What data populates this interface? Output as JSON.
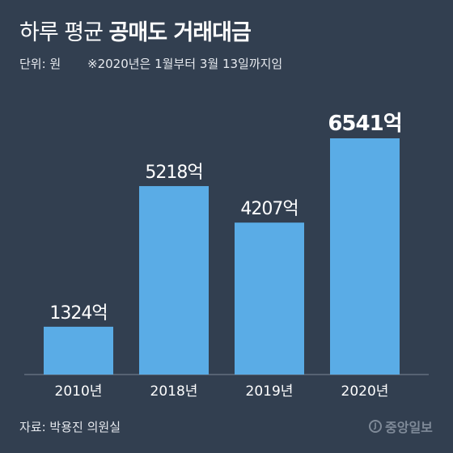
{
  "header": {
    "title_light": "하루 평균",
    "title_bold": "공매도 거래대금",
    "unit": "단위: 원",
    "note": "※2020년은 1월부터 3월 13일까지임"
  },
  "footer": {
    "source": "자료: 박용진 의원실",
    "logo_text": "중앙일보"
  },
  "colors": {
    "background": "#323f50",
    "bar": "#5aace6",
    "text": "#ffffff"
  },
  "chart_data": {
    "type": "bar",
    "title": "하루 평균 공매도 거래대금",
    "categories": [
      "2010년",
      "2018년",
      "2019년",
      "2020년"
    ],
    "values": [
      1324,
      5218,
      4207,
      6541
    ],
    "value_labels": [
      "1324억",
      "5218억",
      "4207억",
      "6541억"
    ],
    "highlight_index": 3,
    "ylabel": "",
    "xlabel": "",
    "ylim": [
      0,
      6541
    ],
    "grid": false,
    "legend": "none"
  }
}
